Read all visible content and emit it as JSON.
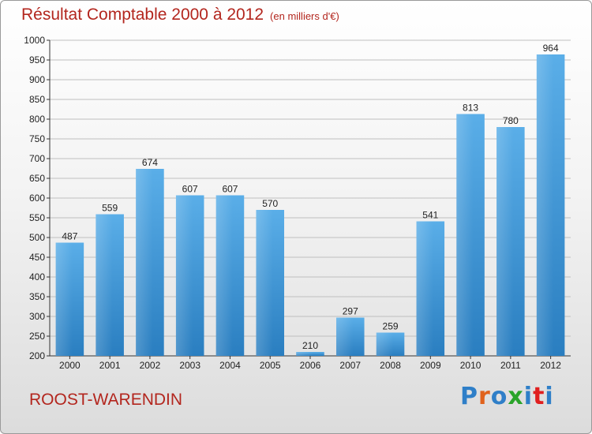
{
  "header": {
    "title": "Résultat Comptable 2000 à 2012",
    "subtitle": "(en milliers d'€)"
  },
  "footer": {
    "town": "ROOST-WARENDIN",
    "logo": "Proxiti"
  },
  "colors": {
    "title": "#b3261e",
    "bar_top": "#5aaee8",
    "bar_bottom": "#2a7ec0",
    "grid": "#bfbfbf",
    "logo": [
      "#2f7fc8",
      "#e0621c",
      "#2f7fc8",
      "#2aa42a",
      "#2f7fc8",
      "#e02020",
      "#2f7fc8"
    ]
  },
  "chart_data": {
    "type": "bar",
    "title": "Résultat Comptable 2000 à 2012",
    "subtitle": "(en milliers d'€)",
    "categories": [
      "2000",
      "2001",
      "2002",
      "2003",
      "2004",
      "2005",
      "2006",
      "2007",
      "2008",
      "2009",
      "2010",
      "2011",
      "2012"
    ],
    "values": [
      487,
      559,
      674,
      607,
      607,
      570,
      210,
      297,
      259,
      541,
      813,
      780,
      964
    ],
    "ylim": [
      200,
      1000
    ],
    "yticks": [
      200,
      250,
      300,
      350,
      400,
      450,
      500,
      550,
      600,
      650,
      700,
      750,
      800,
      850,
      900,
      950,
      1000
    ],
    "grid": true,
    "data_labels": true
  }
}
